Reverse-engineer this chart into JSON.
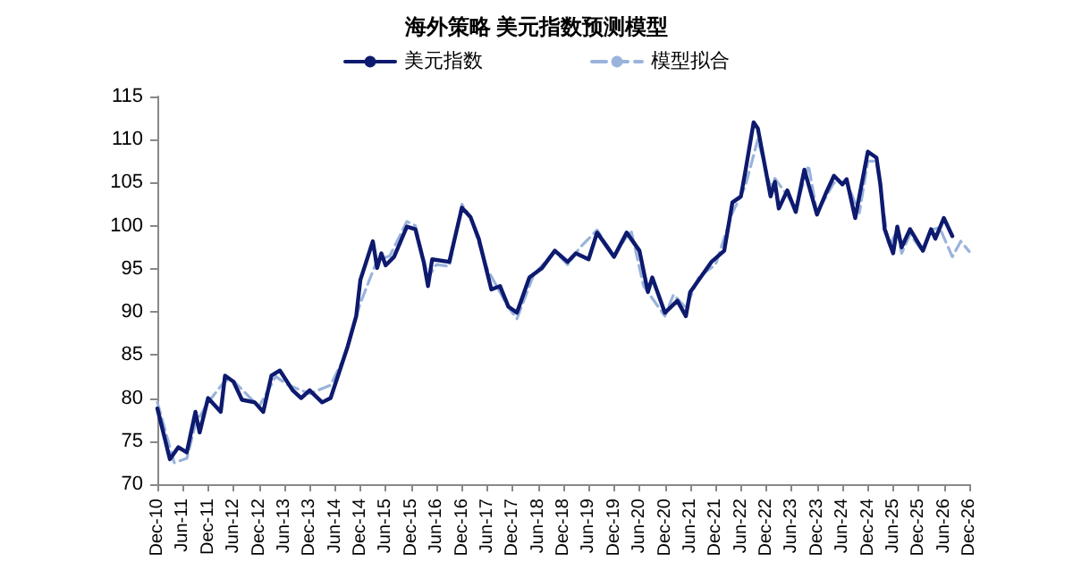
{
  "chart_data": {
    "type": "line",
    "title": "海外策略 美元指数预测模型",
    "xlim": [
      "2010-12",
      "2026-12"
    ],
    "xticks": [
      {
        "value": "2010-12",
        "label": "Dec-10"
      },
      {
        "value": "2011-06",
        "label": "Jun-11"
      },
      {
        "value": "2011-12",
        "label": "Dec-11"
      },
      {
        "value": "2012-06",
        "label": "Jun-12"
      },
      {
        "value": "2012-12",
        "label": "Dec-12"
      },
      {
        "value": "2013-06",
        "label": "Jun-13"
      },
      {
        "value": "2013-12",
        "label": "Dec-13"
      },
      {
        "value": "2014-06",
        "label": "Jun-14"
      },
      {
        "value": "2014-12",
        "label": "Dec-14"
      },
      {
        "value": "2015-06",
        "label": "Jun-15"
      },
      {
        "value": "2015-12",
        "label": "Dec-15"
      },
      {
        "value": "2016-06",
        "label": "Jun-16"
      },
      {
        "value": "2016-12",
        "label": "Dec-16"
      },
      {
        "value": "2017-06",
        "label": "Jun-17"
      },
      {
        "value": "2017-12",
        "label": "Dec-17"
      },
      {
        "value": "2018-06",
        "label": "Jun-18"
      },
      {
        "value": "2018-12",
        "label": "Dec-18"
      },
      {
        "value": "2019-06",
        "label": "Jun-19"
      },
      {
        "value": "2019-12",
        "label": "Dec-19"
      },
      {
        "value": "2020-06",
        "label": "Jun-20"
      },
      {
        "value": "2020-12",
        "label": "Dec-20"
      },
      {
        "value": "2021-06",
        "label": "Jun-21"
      },
      {
        "value": "2021-12",
        "label": "Dec-21"
      },
      {
        "value": "2022-06",
        "label": "Jun-22"
      },
      {
        "value": "2022-12",
        "label": "Dec-22"
      },
      {
        "value": "2023-06",
        "label": "Jun-23"
      },
      {
        "value": "2023-12",
        "label": "Dec-23"
      },
      {
        "value": "2024-06",
        "label": "Jun-24"
      },
      {
        "value": "2024-12",
        "label": "Dec-24"
      },
      {
        "value": "2025-06",
        "label": "Jun-25"
      },
      {
        "value": "2025-12",
        "label": "Dec-25"
      },
      {
        "value": "2026-06",
        "label": "Jun-26"
      },
      {
        "value": "2026-12",
        "label": "Dec-26"
      }
    ],
    "ylim": [
      70,
      115
    ],
    "yticks": [
      70,
      75,
      80,
      85,
      90,
      95,
      100,
      105,
      110,
      115
    ],
    "grid": false,
    "legend": "top",
    "marker": "none",
    "series": [
      {
        "name": "美元指数",
        "color": "#0d1a6e",
        "line_style": "solid",
        "x": [
          "2010-12",
          "2011-03",
          "2011-05",
          "2011-07",
          "2011-09",
          "2011-10",
          "2011-12",
          "2012-03",
          "2012-04",
          "2012-06",
          "2012-08",
          "2012-11",
          "2013-01",
          "2013-03",
          "2013-05",
          "2013-08",
          "2013-10",
          "2013-12",
          "2014-03",
          "2014-05",
          "2014-09",
          "2014-11",
          "2014-12",
          "2015-03",
          "2015-04",
          "2015-05",
          "2015-06",
          "2015-08",
          "2015-11",
          "2016-01",
          "2016-03",
          "2016-04",
          "2016-05",
          "2016-09",
          "2016-12",
          "2017-02",
          "2017-04",
          "2017-07",
          "2017-09",
          "2017-11",
          "2018-01",
          "2018-04",
          "2018-07",
          "2018-10",
          "2019-01",
          "2019-03",
          "2019-06",
          "2019-08",
          "2019-10",
          "2019-12",
          "2020-03",
          "2020-06",
          "2020-08",
          "2020-09",
          "2020-12",
          "2021-03",
          "2021-05",
          "2021-06",
          "2021-08",
          "2021-11",
          "2022-02",
          "2022-04",
          "2022-06",
          "2022-07",
          "2022-09",
          "2022-10",
          "2023-01",
          "2023-02",
          "2023-03",
          "2023-05",
          "2023-07",
          "2023-09",
          "2023-12",
          "2024-02",
          "2024-04",
          "2024-06",
          "2024-07",
          "2024-09",
          "2024-12",
          "2025-02",
          "2025-03",
          "2025-04",
          "2025-06",
          "2025-07",
          "2025-08",
          "2025-10",
          "2026-01",
          "2026-03",
          "2026-04",
          "2026-06",
          "2026-08"
        ],
        "values": [
          78.8,
          72.9,
          74.3,
          73.7,
          78.4,
          76,
          80,
          78.4,
          82.6,
          81.9,
          79.8,
          79.5,
          78.4,
          82.6,
          83.2,
          80.9,
          80,
          80.9,
          79.5,
          80,
          86,
          89.5,
          93.7,
          98.2,
          95.1,
          96.8,
          95.4,
          96.4,
          99.9,
          99.6,
          95.8,
          93,
          96.1,
          95.8,
          102.1,
          101,
          98.5,
          92.6,
          93,
          90.6,
          89.9,
          94,
          95.1,
          97.1,
          95.8,
          96.8,
          96.1,
          99.2,
          97.8,
          96.4,
          99.2,
          97.1,
          92.3,
          94,
          89.9,
          91.3,
          89.5,
          92.3,
          93.7,
          95.8,
          97.1,
          102.7,
          103.4,
          106.1,
          112,
          111.3,
          103.4,
          105.1,
          102,
          104.1,
          101.6,
          106.5,
          101.3,
          103.7,
          105.8,
          104.8,
          105.4,
          100.9,
          108.6,
          107.9,
          104.8,
          99.6,
          96.8,
          99.9,
          97.5,
          99.6,
          97.1,
          99.6,
          98.5,
          100.9,
          98.8
        ]
      },
      {
        "name": "模型拟合",
        "color": "#9ab3dc",
        "line_style": "dashed",
        "x": [
          "2010-12",
          "2011-04",
          "2011-07",
          "2011-09",
          "2011-12",
          "2012-04",
          "2012-06",
          "2012-10",
          "2012-12",
          "2013-04",
          "2013-07",
          "2013-12",
          "2014-05",
          "2014-08",
          "2014-12",
          "2015-04",
          "2015-07",
          "2015-11",
          "2016-01",
          "2016-04",
          "2016-06",
          "2016-09",
          "2016-12",
          "2017-02",
          "2017-06",
          "2017-11",
          "2018-01",
          "2018-05",
          "2018-10",
          "2019-01",
          "2019-04",
          "2019-08",
          "2019-12",
          "2020-04",
          "2020-07",
          "2020-12",
          "2021-02",
          "2021-05",
          "2021-08",
          "2021-12",
          "2022-04",
          "2022-07",
          "2022-10",
          "2023-01",
          "2023-02",
          "2023-05",
          "2023-07",
          "2023-10",
          "2023-12",
          "2024-04",
          "2024-07",
          "2024-10",
          "2024-12",
          "2025-02",
          "2025-05",
          "2025-07",
          "2025-08",
          "2025-10",
          "2026-01",
          "2026-03",
          "2026-05",
          "2026-08",
          "2026-10",
          "2026-12"
        ],
        "values": [
          79.5,
          72.5,
          73,
          77,
          79.5,
          82,
          82,
          80,
          79,
          82.5,
          81.5,
          80.5,
          81.5,
          84.5,
          91,
          96,
          96.5,
          100.5,
          100,
          94,
          95.5,
          95.3,
          102.5,
          101,
          95,
          90.5,
          89.2,
          94.3,
          97,
          95.5,
          97.5,
          99.5,
          96.5,
          99.5,
          93,
          89.5,
          92,
          90.5,
          94,
          95.5,
          101.5,
          104.5,
          110,
          104.5,
          105.5,
          103.5,
          102,
          107,
          101.5,
          105,
          105,
          101.5,
          107.5,
          107.5,
          97.5,
          99.5,
          96.8,
          99,
          97,
          99.5,
          99.8,
          96.4,
          98.2,
          97
        ]
      }
    ]
  }
}
